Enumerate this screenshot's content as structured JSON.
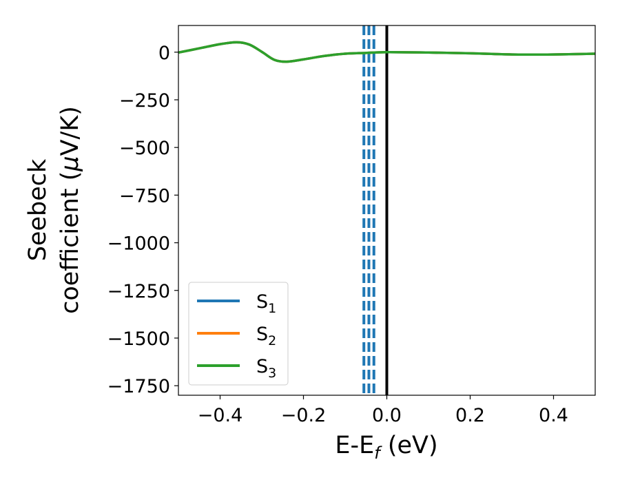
{
  "chart_data": {
    "type": "line",
    "xlabel": {
      "main": "E-E",
      "sub": "f",
      "unit": " (eV)"
    },
    "ylabel": {
      "line1": "Seebeck",
      "line2a": "coefficient  (",
      "mu": "μ",
      "line2b": "V/K)"
    },
    "xlim": [
      -0.5,
      0.5
    ],
    "ylim": [
      -1800,
      140
    ],
    "xticks": [
      -0.4,
      -0.2,
      0.0,
      0.2,
      0.4
    ],
    "xtick_labels": [
      "−0.4",
      "−0.2",
      "0.0",
      "0.2",
      "0.4"
    ],
    "yticks": [
      0,
      -250,
      -500,
      -750,
      -1000,
      -1250,
      -1500,
      -1750
    ],
    "ytick_labels": [
      "0",
      "−250",
      "−500",
      "−750",
      "−1000",
      "−1250",
      "−1500",
      "−1750"
    ],
    "legend_position": "lower-left",
    "grid": false,
    "series": [
      {
        "name": "S",
        "sub": "1",
        "color": "#1f77b4",
        "x": [
          -0.5,
          -0.45,
          -0.4,
          -0.36,
          -0.33,
          -0.3,
          -0.27,
          -0.24,
          -0.2,
          -0.15,
          -0.1,
          -0.05,
          0.0,
          0.1,
          0.2,
          0.3,
          0.4,
          0.5
        ],
        "y": [
          -2,
          20,
          42,
          52,
          40,
          2,
          -40,
          -50,
          -38,
          -20,
          -8,
          -4,
          0,
          -2,
          -6,
          -12,
          -12,
          -8
        ]
      },
      {
        "name": "S",
        "sub": "2",
        "color": "#ff7f0e",
        "x": [
          -0.5,
          -0.45,
          -0.4,
          -0.36,
          -0.33,
          -0.3,
          -0.27,
          -0.24,
          -0.2,
          -0.15,
          -0.1,
          -0.05,
          0.0,
          0.1,
          0.2,
          0.3,
          0.4,
          0.5
        ],
        "y": [
          -2,
          20,
          42,
          52,
          40,
          2,
          -40,
          -50,
          -38,
          -20,
          -8,
          -4,
          0,
          -2,
          -6,
          -12,
          -12,
          -8
        ]
      },
      {
        "name": "S",
        "sub": "3",
        "color": "#2ca02c",
        "x": [
          -0.5,
          -0.45,
          -0.4,
          -0.36,
          -0.33,
          -0.3,
          -0.27,
          -0.24,
          -0.2,
          -0.15,
          -0.1,
          -0.05,
          0.0,
          0.1,
          0.2,
          0.3,
          0.4,
          0.5
        ],
        "y": [
          -2,
          20,
          42,
          52,
          40,
          2,
          -40,
          -50,
          -38,
          -20,
          -8,
          -4,
          0,
          -2,
          -6,
          -12,
          -12,
          -8
        ]
      }
    ],
    "vlines": [
      {
        "x": -0.055,
        "color": "#1f77b4",
        "style": "dashed"
      },
      {
        "x": -0.043,
        "color": "#1f77b4",
        "style": "dashed"
      },
      {
        "x": -0.031,
        "color": "#1f77b4",
        "style": "dashed"
      },
      {
        "x": 0.0,
        "color": "#000000",
        "style": "solid"
      }
    ]
  }
}
